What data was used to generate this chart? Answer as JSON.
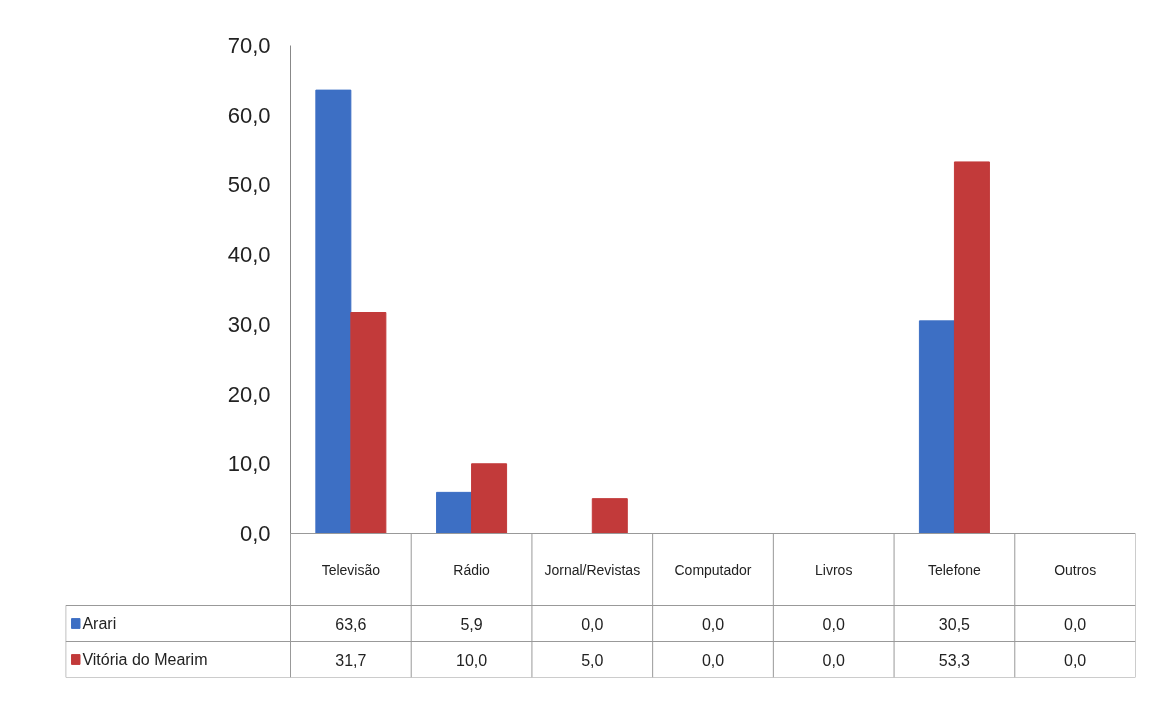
{
  "chart_data": {
    "type": "bar",
    "categories": [
      "Televisão",
      "Rádio",
      "Jornal/Revistas",
      "Computador",
      "Livros",
      "Telefone",
      "Outros"
    ],
    "series": [
      {
        "name": "Arari",
        "color": "#3d6fc4",
        "values": [
          63.6,
          5.9,
          0.0,
          0.0,
          0.0,
          30.5,
          0.0
        ],
        "value_labels": [
          "63,6",
          "5,9",
          "0,0",
          "0,0",
          "0,0",
          "30,5",
          "0,0"
        ]
      },
      {
        "name": "Vitória do Mearim",
        "color": "#c23a3a",
        "values": [
          31.7,
          10.0,
          5.0,
          0.0,
          0.0,
          53.3,
          0.0
        ],
        "value_labels": [
          "31,7",
          "10,0",
          "5,0",
          "0,0",
          "0,0",
          "53,3",
          "0,0"
        ]
      }
    ],
    "ylim": [
      0,
      70
    ],
    "yticks": [
      {
        "value": 0,
        "label": "0,0"
      },
      {
        "value": 10,
        "label": "10,0"
      },
      {
        "value": 20,
        "label": "20,0"
      },
      {
        "value": 30,
        "label": "30,0"
      },
      {
        "value": 40,
        "label": "40,0"
      },
      {
        "value": 50,
        "label": "50,0"
      },
      {
        "value": 60,
        "label": "60,0"
      },
      {
        "value": 70,
        "label": "70,0"
      }
    ],
    "grid": false,
    "legend": "bottom"
  }
}
